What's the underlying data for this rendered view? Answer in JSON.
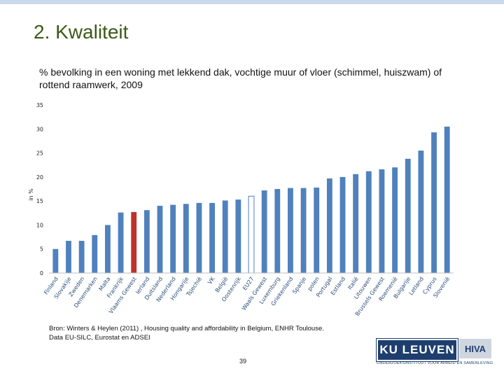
{
  "slide": {
    "title": "2. Kwaliteit",
    "subtitle": "% bevolking in een woning met lekkend dak, vochtige muur of vloer (schimmel, huiszwam) of rottend raamwerk, 2009",
    "source_line1": "Bron: Winters & Heylen (2011) , Housing quality and affordability in Belgium, ENHR Toulouse.",
    "source_line2": "Data EU-SILC, Eurostat en ADSEI",
    "page_number": "39",
    "logo_main": "KU LEUVEN",
    "logo_secondary": "HIVA",
    "logo_caption": "ONDERZOEKSINSTITUUT VOOR ARBEID EN SAMENLEVING"
  },
  "colors": {
    "bar": "#4f81bd",
    "highlight_bar": "#c0312b",
    "eu_bar": "#ffffff",
    "title": "#3d5a17"
  },
  "chart_data": {
    "type": "bar",
    "title": "% bevolking in een woning met lekkend dak, vochtige muur of vloer (schimmel, huiszwam) of rottend raamwerk, 2009",
    "xlabel": "",
    "ylabel": "in %",
    "ylim": [
      0,
      35
    ],
    "yticks": [
      0,
      5,
      10,
      15,
      20,
      25,
      30,
      35
    ],
    "grid": false,
    "categories": [
      "Finland",
      "Slovakije",
      "Zweden",
      "Denemarken",
      "Malta",
      "Frankrijk",
      "Vlaams Gewest",
      "Ierland",
      "Duitsland",
      "Nederland",
      "Hongarije",
      "Tsjechië",
      "VK",
      "België",
      "Oostenrijk",
      "EU27",
      "Waals Gewest",
      "Luxemburg",
      "Griekenland",
      "Spanje",
      "polen",
      "Portugal",
      "Estland",
      "Italië",
      "Litouwen",
      "Brussels Gewest",
      "Roemenië",
      "Bulgarije",
      "Letland",
      "Cyprus",
      "Slovenië"
    ],
    "values": [
      5.0,
      6.7,
      6.7,
      7.9,
      10.0,
      12.6,
      12.7,
      13.1,
      14.0,
      14.2,
      14.4,
      14.6,
      14.6,
      15.1,
      15.3,
      16.0,
      17.2,
      17.5,
      17.7,
      17.7,
      17.8,
      19.7,
      20.0,
      20.6,
      21.2,
      21.6,
      22.0,
      23.8,
      25.5,
      29.3,
      30.5
    ],
    "highlight": [
      "Vlaams Gewest"
    ],
    "outlined": [
      "EU27"
    ]
  }
}
